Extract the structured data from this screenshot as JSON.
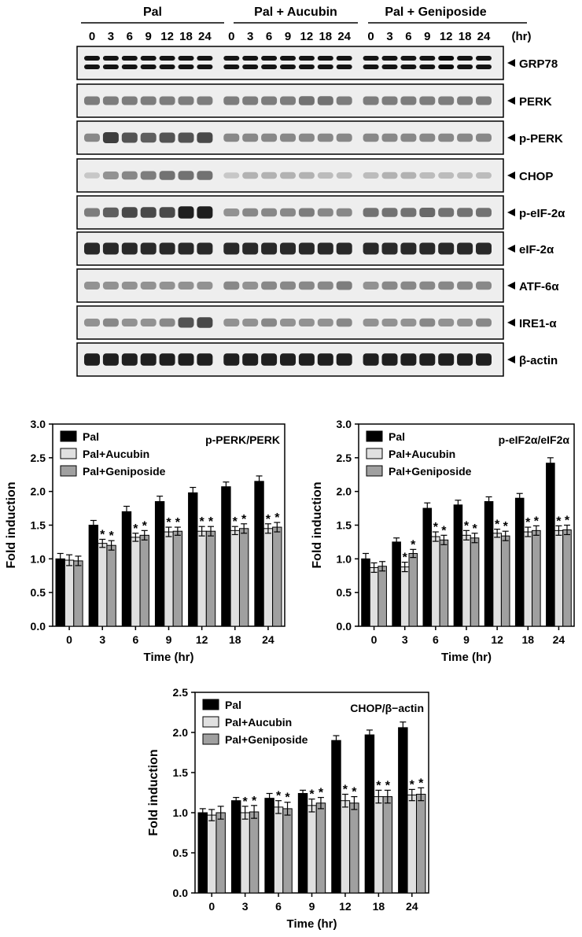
{
  "blot": {
    "groups": [
      "Pal",
      "Pal + Aucubin",
      "Pal + Geniposide"
    ],
    "timepoints": [
      "0",
      "3",
      "6",
      "9",
      "12",
      "18",
      "24"
    ],
    "unit_label": "(hr)",
    "rows": [
      {
        "label": "GRP78",
        "profile": [
          1,
          1,
          1,
          1,
          1,
          1,
          1,
          1,
          1,
          1,
          1,
          1,
          1,
          1,
          1,
          1,
          1,
          1,
          1.05,
          1,
          1
        ]
      },
      {
        "label": "PERK",
        "profile": [
          0.5,
          0.5,
          0.5,
          0.5,
          0.5,
          0.5,
          0.5,
          0.5,
          0.5,
          0.5,
          0.5,
          0.55,
          0.55,
          0.5,
          0.5,
          0.5,
          0.5,
          0.5,
          0.5,
          0.5,
          0.5
        ]
      },
      {
        "label": "p-PERK",
        "profile": [
          0.45,
          0.8,
          0.7,
          0.65,
          0.7,
          0.7,
          0.75,
          0.45,
          0.45,
          0.45,
          0.45,
          0.45,
          0.45,
          0.45,
          0.45,
          0.45,
          0.45,
          0.45,
          0.45,
          0.45,
          0.45
        ]
      },
      {
        "label": "CHOP",
        "profile": [
          0.15,
          0.4,
          0.45,
          0.5,
          0.55,
          0.55,
          0.55,
          0.15,
          0.25,
          0.25,
          0.25,
          0.25,
          0.2,
          0.2,
          0.2,
          0.25,
          0.25,
          0.2,
          0.2,
          0.2,
          0.2
        ]
      },
      {
        "label": "p-eIF-2α",
        "profile": [
          0.5,
          0.65,
          0.75,
          0.75,
          0.75,
          0.95,
          0.95,
          0.4,
          0.45,
          0.45,
          0.45,
          0.5,
          0.45,
          0.45,
          0.55,
          0.55,
          0.55,
          0.6,
          0.55,
          0.55,
          0.55
        ]
      },
      {
        "label": "eIF-2α",
        "profile": [
          0.9,
          0.9,
          0.9,
          0.9,
          0.9,
          0.9,
          0.9,
          0.9,
          0.9,
          0.9,
          0.9,
          0.9,
          0.9,
          0.9,
          0.9,
          0.9,
          0.9,
          0.9,
          0.9,
          0.9,
          0.9
        ]
      },
      {
        "label": "ATF-6α",
        "profile": [
          0.4,
          0.4,
          0.4,
          0.4,
          0.4,
          0.4,
          0.4,
          0.45,
          0.4,
          0.45,
          0.45,
          0.45,
          0.45,
          0.5,
          0.4,
          0.45,
          0.45,
          0.45,
          0.45,
          0.45,
          0.45
        ]
      },
      {
        "label": "IRE1-α",
        "profile": [
          0.4,
          0.45,
          0.4,
          0.4,
          0.45,
          0.7,
          0.75,
          0.4,
          0.4,
          0.45,
          0.4,
          0.4,
          0.4,
          0.45,
          0.4,
          0.4,
          0.4,
          0.45,
          0.4,
          0.4,
          0.45
        ]
      },
      {
        "label": "β-actin",
        "profile": [
          0.95,
          0.95,
          0.95,
          0.95,
          0.95,
          0.95,
          0.95,
          0.95,
          0.95,
          0.95,
          0.95,
          0.95,
          0.95,
          0.95,
          0.95,
          0.95,
          0.95,
          0.95,
          0.95,
          0.95,
          0.95
        ]
      }
    ]
  },
  "chart_data": [
    {
      "type": "bar",
      "annotation": "p-PERK/PERK",
      "xlabel": "Time (hr)",
      "ylabel": "Fold induction",
      "ylim": [
        0,
        3.0
      ],
      "yticks": [
        "0.0",
        "0.5",
        "1.0",
        "1.5",
        "2.0",
        "2.5",
        "3.0"
      ],
      "categories": [
        "0",
        "3",
        "6",
        "9",
        "12",
        "18",
        "24"
      ],
      "series": [
        {
          "name": "Pal",
          "color": "#000000",
          "values": [
            1.0,
            1.5,
            1.7,
            1.85,
            1.98,
            2.07,
            2.15
          ],
          "errors": [
            0.08,
            0.07,
            0.08,
            0.08,
            0.08,
            0.07,
            0.08
          ],
          "stars": [
            false,
            false,
            false,
            false,
            false,
            false,
            false
          ]
        },
        {
          "name": "Pal+Aucubin",
          "color": "#e0e0e0",
          "values": [
            0.98,
            1.23,
            1.32,
            1.4,
            1.41,
            1.42,
            1.45
          ],
          "errors": [
            0.08,
            0.06,
            0.06,
            0.07,
            0.07,
            0.06,
            0.07
          ],
          "stars": [
            false,
            true,
            true,
            true,
            true,
            true,
            true
          ]
        },
        {
          "name": "Pal+Geniposide",
          "color": "#a0a0a0",
          "values": [
            0.97,
            1.2,
            1.35,
            1.41,
            1.41,
            1.45,
            1.47
          ],
          "errors": [
            0.07,
            0.07,
            0.07,
            0.06,
            0.07,
            0.07,
            0.07
          ],
          "stars": [
            false,
            true,
            true,
            true,
            true,
            true,
            true
          ]
        }
      ]
    },
    {
      "type": "bar",
      "annotation": "p-eIF2α/eIF2α",
      "xlabel": "Time (hr)",
      "ylabel": "Fold induction",
      "ylim": [
        0,
        3.0
      ],
      "yticks": [
        "0.0",
        "0.5",
        "1.0",
        "1.5",
        "2.0",
        "2.5",
        "3.0"
      ],
      "categories": [
        "0",
        "3",
        "6",
        "9",
        "12",
        "18",
        "24"
      ],
      "series": [
        {
          "name": "Pal",
          "color": "#000000",
          "values": [
            1.0,
            1.25,
            1.75,
            1.8,
            1.85,
            1.9,
            2.42
          ],
          "errors": [
            0.08,
            0.06,
            0.08,
            0.07,
            0.07,
            0.07,
            0.08
          ],
          "stars": [
            false,
            false,
            false,
            false,
            false,
            false,
            false
          ]
        },
        {
          "name": "Pal+Aucubin",
          "color": "#e0e0e0",
          "values": [
            0.87,
            0.88,
            1.33,
            1.35,
            1.38,
            1.4,
            1.42
          ],
          "errors": [
            0.07,
            0.07,
            0.07,
            0.07,
            0.06,
            0.07,
            0.07
          ],
          "stars": [
            false,
            true,
            true,
            true,
            true,
            true,
            true
          ]
        },
        {
          "name": "Pal+Geniposide",
          "color": "#a0a0a0",
          "values": [
            0.89,
            1.08,
            1.28,
            1.31,
            1.34,
            1.42,
            1.43
          ],
          "errors": [
            0.07,
            0.06,
            0.07,
            0.07,
            0.07,
            0.07,
            0.07
          ],
          "stars": [
            false,
            true,
            true,
            true,
            true,
            true,
            true
          ]
        }
      ]
    },
    {
      "type": "bar",
      "annotation": "CHOP/β−actin",
      "xlabel": "Time (hr)",
      "ylabel": "Fold induction",
      "ylim": [
        0,
        2.5
      ],
      "yticks": [
        "0.0",
        "0.5",
        "1.0",
        "1.5",
        "2.0",
        "2.5"
      ],
      "categories": [
        "0",
        "3",
        "6",
        "9",
        "12",
        "18",
        "24"
      ],
      "series": [
        {
          "name": "Pal",
          "color": "#000000",
          "values": [
            1.0,
            1.15,
            1.18,
            1.24,
            1.9,
            1.97,
            2.06
          ],
          "errors": [
            0.05,
            0.04,
            0.06,
            0.04,
            0.06,
            0.06,
            0.07
          ],
          "stars": [
            false,
            false,
            false,
            false,
            false,
            false,
            false
          ]
        },
        {
          "name": "Pal+Aucubin",
          "color": "#e0e0e0",
          "values": [
            0.97,
            1.0,
            1.07,
            1.09,
            1.15,
            1.2,
            1.22
          ],
          "errors": [
            0.07,
            0.08,
            0.08,
            0.08,
            0.08,
            0.08,
            0.07
          ],
          "stars": [
            false,
            true,
            true,
            true,
            true,
            true,
            true
          ]
        },
        {
          "name": "Pal+Geniposide",
          "color": "#a0a0a0",
          "values": [
            1.0,
            1.01,
            1.05,
            1.12,
            1.12,
            1.2,
            1.23
          ],
          "errors": [
            0.08,
            0.08,
            0.08,
            0.07,
            0.08,
            0.08,
            0.08
          ],
          "stars": [
            false,
            true,
            true,
            true,
            true,
            true,
            true
          ]
        }
      ]
    }
  ]
}
